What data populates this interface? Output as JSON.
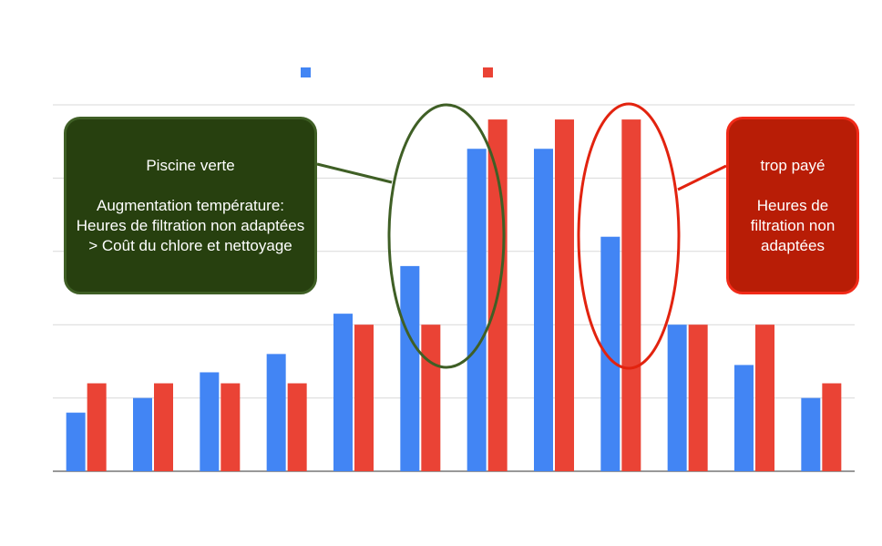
{
  "chart_data": {
    "type": "bar",
    "categories": [
      "",
      "",
      "",
      "",
      "",
      "",
      "",
      "",
      "",
      "",
      "",
      ""
    ],
    "series": [
      {
        "color": "#4285f4",
        "values": [
          0.8,
          1.0,
          1.35,
          1.6,
          2.15,
          2.8,
          4.4,
          4.4,
          3.2,
          2.0,
          1.45,
          1.0
        ]
      },
      {
        "color": "#ea4335",
        "values": [
          1.2,
          1.2,
          1.2,
          1.2,
          2.0,
          2.0,
          4.8,
          4.8,
          4.8,
          2.0,
          2.0,
          1.2
        ]
      }
    ],
    "ylim": [
      0,
      5
    ],
    "grid": true,
    "legend_position": "top"
  },
  "annotations": {
    "green_callout": {
      "text": "Piscine verte\n\nAugmentation température:\nHeures de filtration non adaptées\n> Coût du chlore et nettoyage",
      "fill": "#27400f",
      "stroke": "#3f5f25"
    },
    "red_callout": {
      "text": "trop payé\n\nHeures de filtration non adaptées",
      "fill": "#b81d06",
      "stroke": "#f12a18"
    }
  }
}
